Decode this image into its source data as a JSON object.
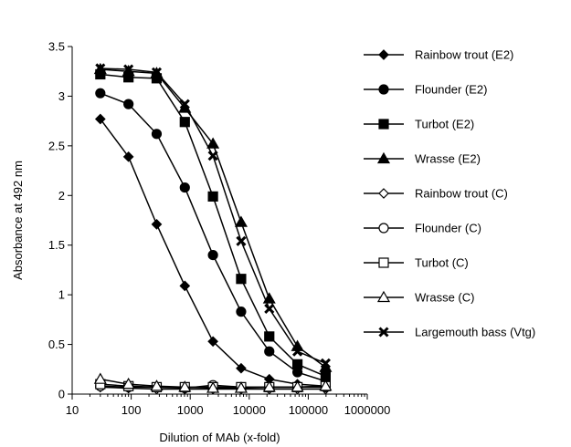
{
  "chart_data": {
    "type": "line",
    "xlabel": "Dilution of MAb (x-fold)",
    "ylabel": "Absorbance at  492 nm",
    "xscale": "log",
    "xlim": [
      10,
      1000000
    ],
    "ylim": [
      0,
      3.5
    ],
    "x_ticks": [
      10,
      100,
      1000,
      10000,
      100000,
      1000000
    ],
    "x_tick_labels": [
      "10",
      "100",
      "1000",
      "10000",
      "100000",
      "1000000"
    ],
    "y_ticks": [
      0,
      0.5,
      1,
      1.5,
      2,
      2.5,
      3,
      3.5
    ],
    "y_tick_labels": [
      "0",
      "0.5",
      "1",
      "1.5",
      "2",
      "2.5",
      "3",
      "3.5"
    ],
    "grid": false,
    "legend_position": "right",
    "x": [
      30,
      90,
      270,
      810,
      2430,
      7290,
      21870,
      65610,
      196830
    ],
    "series": [
      {
        "name": "Rainbow trout (E2)",
        "marker": "diamond-filled",
        "values": [
          2.77,
          2.39,
          1.71,
          1.09,
          0.53,
          0.26,
          0.15,
          0.1,
          0.08
        ]
      },
      {
        "name": "Flounder (E2)",
        "marker": "circle-filled",
        "values": [
          3.03,
          2.92,
          2.62,
          2.08,
          1.4,
          0.83,
          0.43,
          0.22,
          0.13
        ]
      },
      {
        "name": "Turbot (E2)",
        "marker": "square-filled",
        "values": [
          3.22,
          3.19,
          3.18,
          2.74,
          1.99,
          1.16,
          0.58,
          0.3,
          0.18
        ]
      },
      {
        "name": "Wrasse (E2)",
        "marker": "triangle-filled",
        "values": [
          3.27,
          3.25,
          3.23,
          2.88,
          2.52,
          1.73,
          0.96,
          0.48,
          0.27
        ]
      },
      {
        "name": "Rainbow trout (C)",
        "marker": "diamond-open",
        "values": [
          0.07,
          0.06,
          0.05,
          0.05,
          0.05,
          0.05,
          0.05,
          0.05,
          0.05
        ]
      },
      {
        "name": "Flounder (C)",
        "marker": "circle-open",
        "values": [
          0.08,
          0.07,
          0.07,
          0.06,
          0.09,
          0.07,
          0.07,
          0.07,
          0.07
        ]
      },
      {
        "name": "Turbot (C)",
        "marker": "square-open",
        "values": [
          0.1,
          0.08,
          0.07,
          0.07,
          0.07,
          0.07,
          0.07,
          0.07,
          0.08
        ]
      },
      {
        "name": "Wrasse (C)",
        "marker": "triangle-open",
        "values": [
          0.15,
          0.1,
          0.08,
          0.07,
          0.06,
          0.06,
          0.07,
          0.07,
          0.08
        ]
      },
      {
        "name": "Largemouth bass (Vtg)",
        "marker": "x",
        "values": [
          3.28,
          3.27,
          3.24,
          2.92,
          2.4,
          1.54,
          0.86,
          0.43,
          0.31
        ]
      }
    ]
  }
}
